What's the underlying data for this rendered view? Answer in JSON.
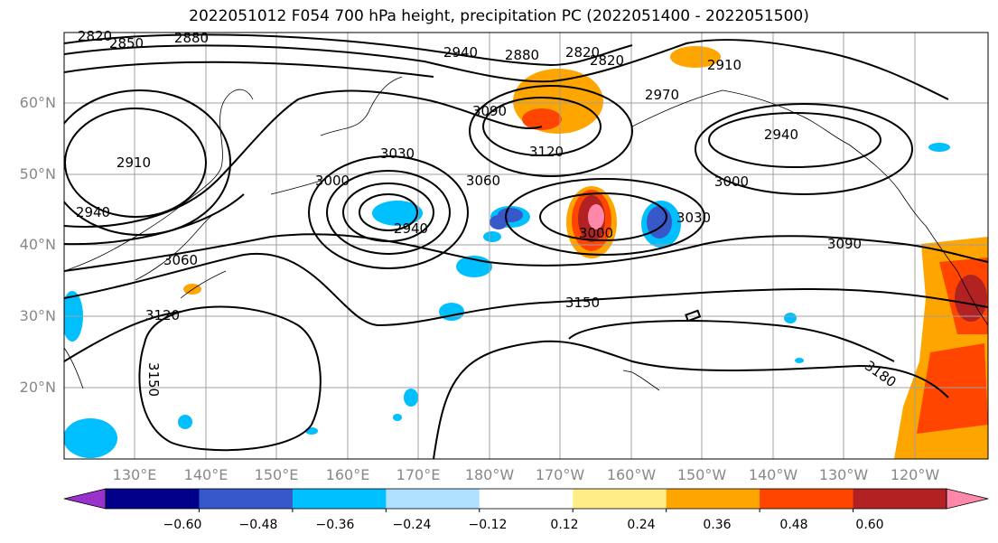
{
  "title": "2022051012 F054 700 hPa height, precipitation PC (2022051400 - 2022051500)",
  "lat_labels": [
    "60°N",
    "50°N",
    "40°N",
    "30°N",
    "20°N"
  ],
  "lon_labels": [
    "130°E",
    "140°E",
    "150°E",
    "160°E",
    "170°E",
    "180°W",
    "170°W",
    "160°W",
    "150°W",
    "140°W",
    "130°W",
    "120°W"
  ],
  "contour_labels": [
    "2820",
    "2850",
    "2880",
    "2940",
    "2880",
    "2820",
    "2820",
    "2910",
    "2910",
    "2940",
    "3090",
    "2970",
    "3030",
    "3000",
    "3120",
    "3060",
    "2940",
    "3000",
    "3030",
    "3090",
    "3000",
    "3060",
    "2940",
    "3120",
    "3150",
    "3150",
    "3180"
  ],
  "colorbar": {
    "ticks": [
      "−0.60",
      "−0.48",
      "−0.36",
      "−0.24",
      "−0.12",
      "0.12",
      "0.24",
      "0.36",
      "0.48",
      "0.60"
    ],
    "colors": [
      "#9932cc",
      "#00008b",
      "#3658c8",
      "#00bfff",
      "#b0e0ff",
      "#ffffff",
      "#ffee88",
      "#ffa500",
      "#ff4500",
      "#b22222",
      "#ff88aa"
    ]
  }
}
